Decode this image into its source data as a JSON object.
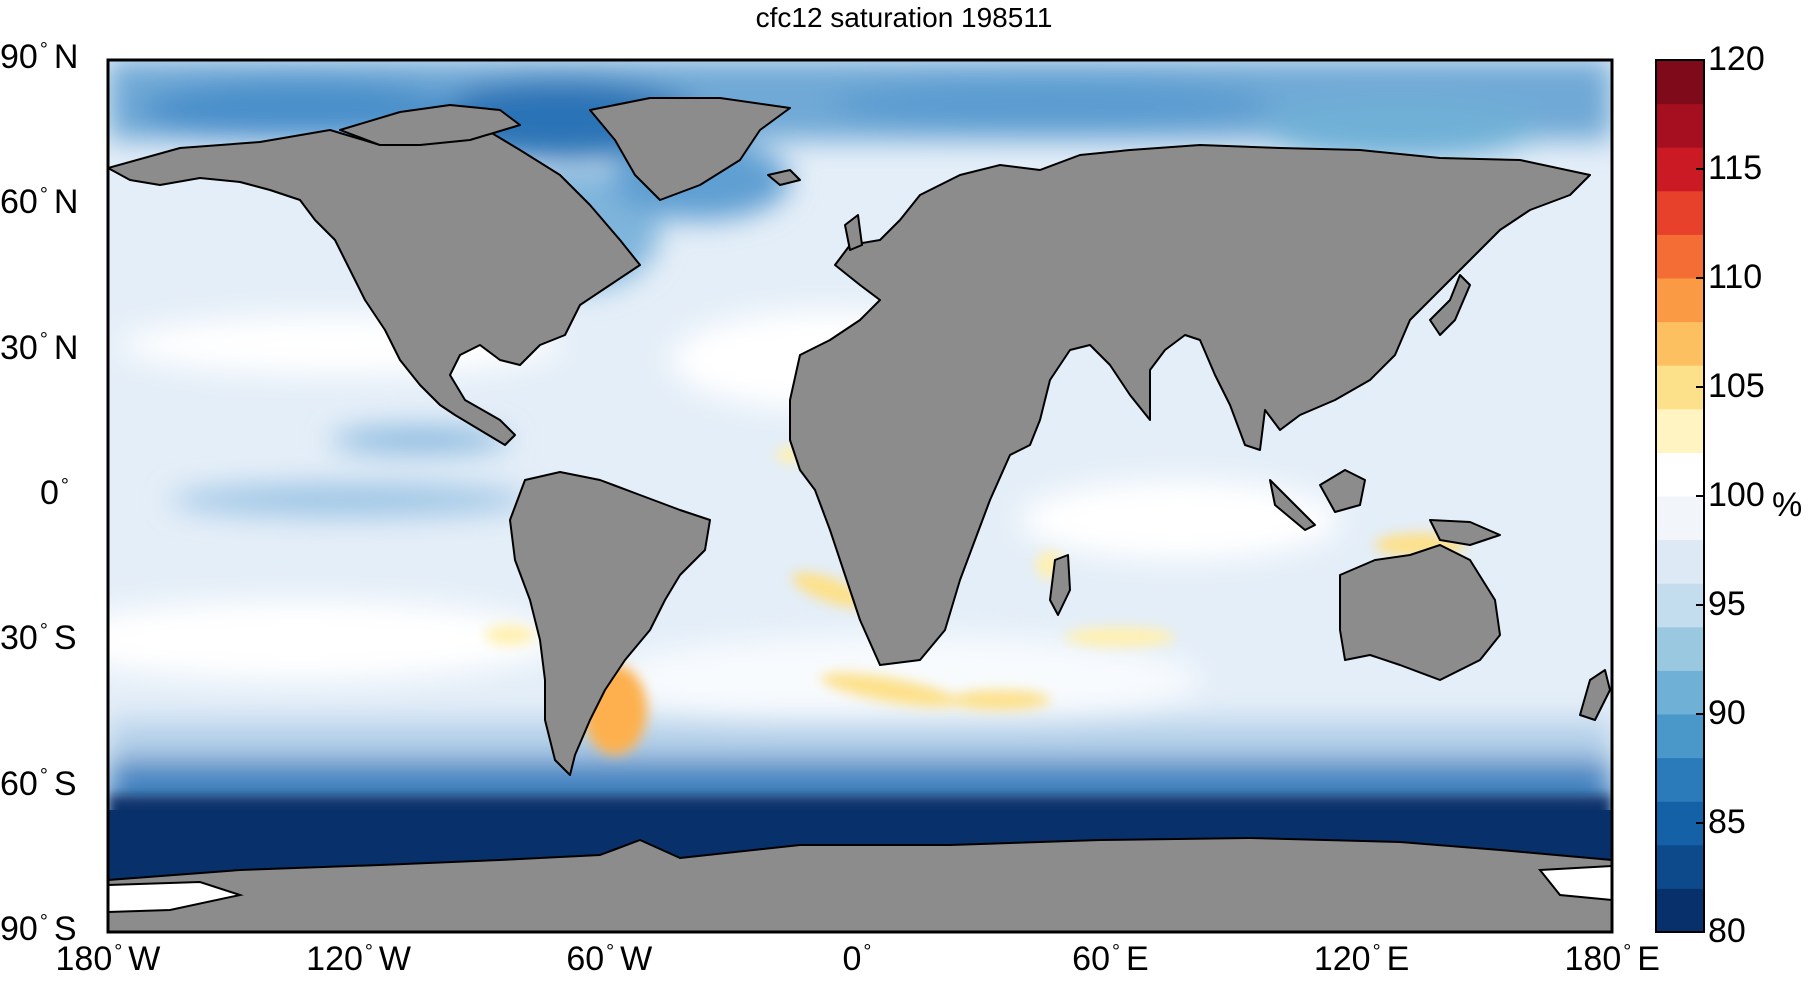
{
  "title": "cfc12 saturation 198511",
  "lat_ticks": [
    {
      "value": 90,
      "label": "90",
      "hemi": "N"
    },
    {
      "value": 60,
      "label": "60",
      "hemi": "N"
    },
    {
      "value": 30,
      "label": "30",
      "hemi": "N"
    },
    {
      "value": 0,
      "label": "0",
      "hemi": ""
    },
    {
      "value": -30,
      "label": "30",
      "hemi": "S"
    },
    {
      "value": -60,
      "label": "60",
      "hemi": "S"
    },
    {
      "value": -90,
      "label": "90",
      "hemi": "S"
    }
  ],
  "lon_ticks": [
    {
      "value": -180,
      "label": "180",
      "hemi": "W"
    },
    {
      "value": -120,
      "label": "120",
      "hemi": "W"
    },
    {
      "value": -60,
      "label": "60",
      "hemi": "W"
    },
    {
      "value": 0,
      "label": "0",
      "hemi": ""
    },
    {
      "value": 60,
      "label": "60",
      "hemi": "E"
    },
    {
      "value": 120,
      "label": "120",
      "hemi": "E"
    },
    {
      "value": 180,
      "label": "180",
      "hemi": "E"
    }
  ],
  "colorbar": {
    "min": 80,
    "max": 120,
    "ticks": [
      "80",
      "85",
      "90",
      "95",
      "100",
      "105",
      "110",
      "115",
      "120"
    ],
    "unit": "%",
    "colors_low_to_high": [
      "#08306b",
      "#0c4a8c",
      "#1561a8",
      "#2b7bba",
      "#4a98c9",
      "#6fb0d7",
      "#9ac8e0",
      "#c3dcee",
      "#dde9f5",
      "#f2f6fb",
      "#ffffff",
      "#fff4c2",
      "#fde08a",
      "#fdc061",
      "#fb9a44",
      "#f46d35",
      "#e8412b",
      "#cc1a24",
      "#a50f1f",
      "#7f0b1a"
    ]
  },
  "land_color": "#8c8c8c",
  "map": {
    "lon_range": [
      -180,
      180
    ],
    "lat_range": [
      -90,
      90
    ]
  }
}
